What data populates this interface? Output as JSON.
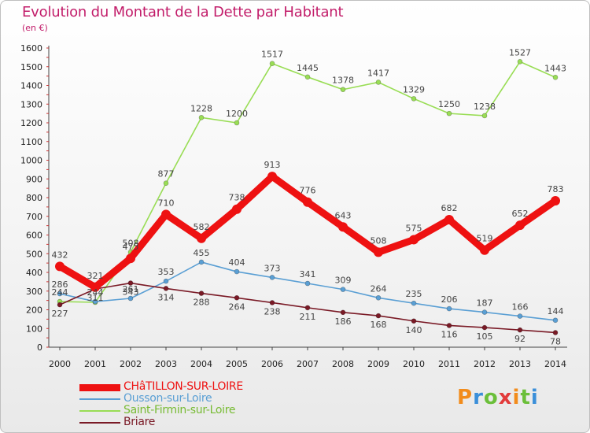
{
  "header": {
    "title": "Evolution du Montant de la Dette par Habitant",
    "unit": "(en €)"
  },
  "logo": {
    "text": "Proxiti",
    "colors": [
      "#f28c1c",
      "#3b8fd9",
      "#6bbf3a",
      "#e23b3b"
    ]
  },
  "chart_data": {
    "type": "line",
    "title": "Evolution du Montant de la Dette par Habitant",
    "ylabel": "(en €)",
    "xlabel": "",
    "ylim": [
      0,
      1600
    ],
    "yticks": [
      0,
      100,
      200,
      300,
      400,
      500,
      600,
      700,
      800,
      900,
      1000,
      1100,
      1200,
      1300,
      1400,
      1500,
      1600
    ],
    "grid": false,
    "legend_position": "bottom-left",
    "categories": [
      "2000",
      "2001",
      "2002",
      "2003",
      "2004",
      "2005",
      "2006",
      "2007",
      "2008",
      "2009",
      "2010",
      "2011",
      "2012",
      "2013",
      "2014"
    ],
    "series": [
      {
        "name": "Saint-Firmin-sur-Loire",
        "color": "#99dd55",
        "values": [
          244,
          240,
          508,
          877,
          1228,
          1200,
          1517,
          1445,
          1378,
          1417,
          1329,
          1250,
          1238,
          1527,
          1443
        ],
        "labels": [
          "244",
          "",
          "508",
          "877",
          "1228",
          "1200",
          "1517",
          "1445",
          "1378",
          "1417",
          "1329",
          "1250",
          "1238",
          "1527",
          "1443"
        ]
      },
      {
        "name": "Ousson-sur-Loire",
        "color": "#5a9fd4",
        "values": [
          286,
          244,
          261,
          353,
          455,
          404,
          373,
          341,
          309,
          264,
          235,
          206,
          187,
          166,
          144
        ],
        "labels": [
          "286",
          "244",
          "261",
          "353",
          "455",
          "404",
          "373",
          "341",
          "309",
          "264",
          "235",
          "206",
          "187",
          "166",
          "144"
        ]
      },
      {
        "name": "Briare",
        "color": "#7a1a26",
        "values": [
          227,
          311,
          343,
          314,
          288,
          264,
          238,
          211,
          186,
          168,
          140,
          116,
          105,
          92,
          78
        ],
        "labels": [
          "227",
          "311",
          "343",
          "314",
          "288",
          "264",
          "238",
          "211",
          "186",
          "168",
          "140",
          "116",
          "105",
          "92",
          "78"
        ]
      },
      {
        "name": "CHâTILLON-SUR-LOIRE",
        "color": "#ee1111",
        "values": [
          432,
          321,
          475,
          710,
          582,
          738,
          913,
          776,
          643,
          508,
          575,
          682,
          519,
          652,
          783
        ],
        "labels": [
          "432",
          "321",
          "475",
          "710",
          "582",
          "738",
          "913",
          "776",
          "643",
          "508",
          "575",
          "682",
          "519",
          "652",
          "783"
        ]
      }
    ]
  },
  "legend": [
    {
      "label": "CHâTILLON-SUR-LOIRE",
      "color": "#ee1111"
    },
    {
      "label": "Ousson-sur-Loire",
      "color": "#5a9fd4"
    },
    {
      "label": "Saint-Firmin-sur-Loire",
      "color": "#99dd55"
    },
    {
      "label": "Briare",
      "color": "#7a1a26"
    }
  ]
}
